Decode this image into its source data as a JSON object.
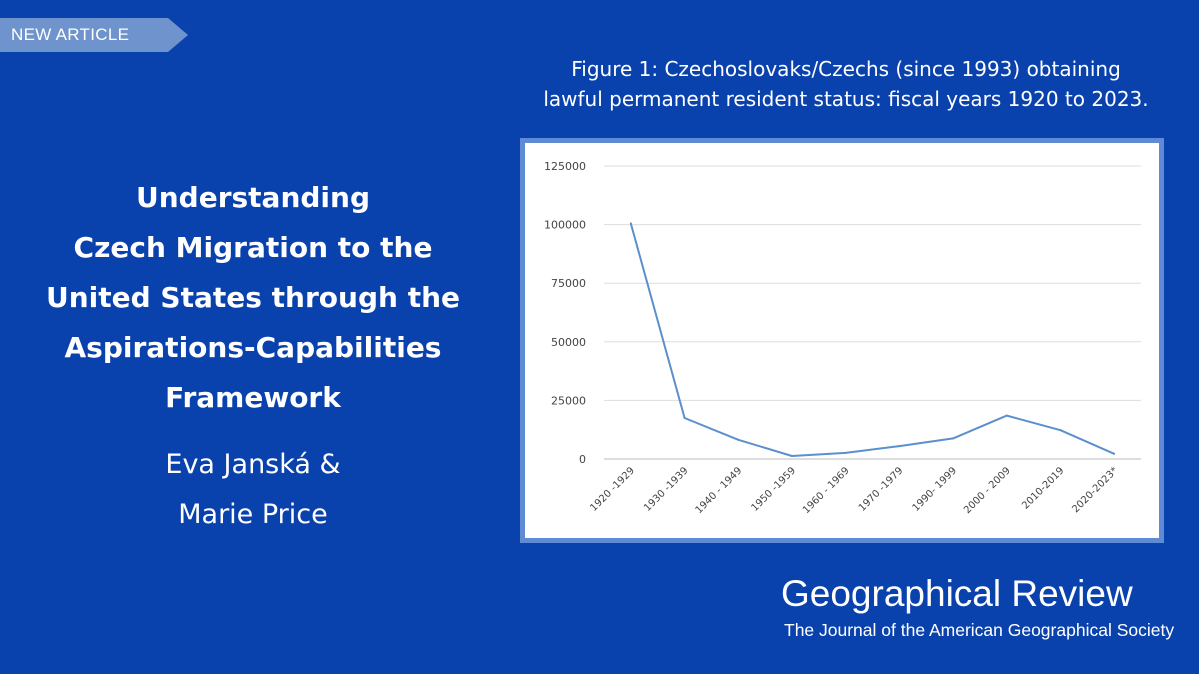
{
  "badge": {
    "label": "NEW ARTICLE"
  },
  "article": {
    "title_lines": [
      "Understanding",
      "Czech Migration to the",
      "United States through the",
      "Aspirations-Capabilities",
      "Framework"
    ],
    "author_lines": [
      "Eva Janská &",
      "Marie Price"
    ]
  },
  "figure": {
    "caption_lines": [
      "Figure 1: Czechoslovaks/Czechs (since 1993) obtaining",
      "lawful permanent resident status: fiscal years 1920 to 2023."
    ]
  },
  "journal": {
    "name": "Geographical Review",
    "subtitle": "The Journal of the American Geographical Society"
  },
  "colors": {
    "background": "#0a42ad",
    "badge": "#6f93cc",
    "chart_frame": "#5f8ad6",
    "line": "#5b8fce",
    "grid": "#dddddd"
  },
  "chart_data": {
    "type": "line",
    "categories": [
      "1920 -1929",
      "1930 -1939",
      "1940 - 1949",
      "1950 -1959",
      "1960 - 1969",
      "1970 -1979",
      "1990- 1999",
      "2000 - 2009",
      "2010-2019",
      "2020-2023*"
    ],
    "values": [
      100500,
      17500,
      8200,
      1300,
      2600,
      5500,
      8800,
      18500,
      12300,
      2200
    ],
    "yticks": [
      0,
      25000,
      50000,
      75000,
      100000,
      125000
    ],
    "ytick_labels": [
      "0",
      "25000",
      "50000",
      "75000",
      "100000",
      "125000"
    ],
    "ylim": [
      0,
      125000
    ],
    "title": "",
    "xlabel": "",
    "ylabel": "",
    "grid": true,
    "legend": "none"
  }
}
